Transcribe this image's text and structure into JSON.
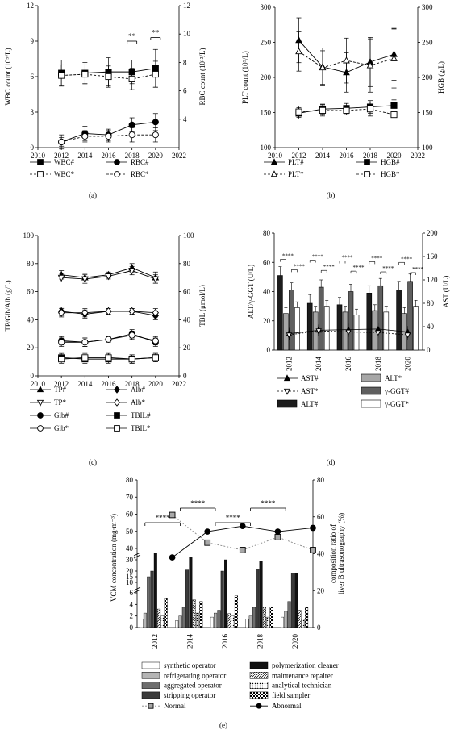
{
  "chart_data": [
    {
      "panel": "(a)",
      "type": "line",
      "ylabel": "WBC count (10⁹/L)",
      "y2label": "RBC count (10¹²/L)",
      "xlim": [
        2010,
        2022
      ],
      "ylim": [
        0,
        12
      ],
      "y2lim": [
        2,
        12
      ],
      "xticks": [
        "2010",
        "2012",
        "2014",
        "2016",
        "2018",
        "2020",
        "2022"
      ],
      "yticks": [
        "0",
        "3",
        "6",
        "9",
        "12"
      ],
      "y2ticks": [
        "4",
        "6",
        "8",
        "10",
        "12"
      ],
      "x": [
        2012,
        2014,
        2016,
        2018,
        2020
      ],
      "annotations": [
        "**",
        "**"
      ],
      "series": [
        {
          "name": "WBC#",
          "axis": "left",
          "marker": "square-filled",
          "dash": false,
          "values": [
            6.3,
            6.3,
            6.4,
            6.4,
            6.7
          ],
          "err": [
            1.1,
            0.9,
            1.2,
            1.0,
            1.6
          ]
        },
        {
          "name": "WBC*",
          "axis": "left",
          "marker": "square-open",
          "dash": true,
          "values": [
            6.1,
            6.2,
            6.0,
            5.8,
            6.2
          ],
          "err": [
            0.9,
            0.8,
            0.9,
            0.9,
            1.1
          ]
        },
        {
          "name": "RBC#",
          "axis": "right",
          "marker": "circle-filled",
          "dash": false,
          "values": [
            2.4,
            3.0,
            2.9,
            3.6,
            3.8
          ],
          "err": [
            0.5,
            0.5,
            0.4,
            0.5,
            0.6
          ]
        },
        {
          "name": "RBC*",
          "axis": "right",
          "marker": "circle-open",
          "dash": true,
          "values": [
            2.4,
            2.8,
            2.8,
            2.9,
            2.9
          ],
          "err": [
            0.3,
            0.4,
            0.4,
            0.5,
            0.5
          ]
        }
      ]
    },
    {
      "panel": "(b)",
      "type": "line",
      "ylabel": "PLT count (10⁹/L)",
      "y2label": "HGB (g/L)",
      "xlim": [
        2010,
        2022
      ],
      "ylim": [
        100,
        300
      ],
      "y2lim": [
        100,
        300
      ],
      "xticks": [
        "2010",
        "2012",
        "2014",
        "2016",
        "2018",
        "2020",
        "2022"
      ],
      "yticks": [
        "100",
        "150",
        "200",
        "250",
        "300"
      ],
      "y2ticks": [
        "100",
        "150",
        "200",
        "250",
        "300"
      ],
      "x": [
        2012,
        2014,
        2016,
        2018,
        2020
      ],
      "series": [
        {
          "name": "PLT#",
          "axis": "left",
          "marker": "triangle-filled",
          "dash": false,
          "values": [
            253,
            215,
            207,
            222,
            233
          ],
          "err": [
            32,
            27,
            28,
            35,
            37
          ]
        },
        {
          "name": "PLT*",
          "axis": "left",
          "marker": "triangle-open",
          "dash": true,
          "values": [
            237,
            214,
            224,
            217,
            227
          ],
          "err": [
            28,
            24,
            32,
            38,
            42
          ]
        },
        {
          "name": "HGB#",
          "axis": "right",
          "marker": "square-filled",
          "dash": false,
          "values": [
            149,
            155,
            156,
            158,
            160
          ],
          "err": [
            8,
            7,
            7,
            9,
            8
          ]
        },
        {
          "name": "HGB*",
          "axis": "right",
          "marker": "square-open",
          "dash": true,
          "values": [
            151,
            153,
            153,
            155,
            147
          ],
          "err": [
            8,
            8,
            6,
            10,
            12
          ]
        }
      ]
    },
    {
      "panel": "(c)",
      "type": "line",
      "ylabel": "TP/Glb/Alb (g/L)",
      "y2label": "TBL (μmol/L)",
      "xlim": [
        2010,
        2022
      ],
      "ylim": [
        0,
        100
      ],
      "y2lim": [
        0,
        100
      ],
      "xticks": [
        "2010",
        "2012",
        "2014",
        "2016",
        "2018",
        "2020",
        "2022"
      ],
      "yticks": [
        "0",
        "20",
        "40",
        "60",
        "80",
        "100"
      ],
      "y2ticks": [
        "0",
        "20",
        "40",
        "60",
        "80",
        "100"
      ],
      "x": [
        2012,
        2014,
        2016,
        2018,
        2020
      ],
      "series": [
        {
          "name": "TP#",
          "axis": "left",
          "marker": "triangle-filled",
          "dash": false,
          "values": [
            72,
            70,
            72,
            77,
            70
          ],
          "err": [
            3,
            3,
            2,
            3,
            4
          ]
        },
        {
          "name": "TP*",
          "axis": "left",
          "marker": "triangle-down-open",
          "dash": false,
          "values": [
            70,
            69,
            71,
            75,
            69
          ],
          "err": [
            3,
            3,
            2,
            3,
            3
          ]
        },
        {
          "name": "Alb#",
          "axis": "left",
          "marker": "diamond-filled",
          "dash": false,
          "values": [
            46,
            44,
            46,
            46,
            43
          ],
          "err": [
            3,
            3,
            2,
            2,
            3
          ]
        },
        {
          "name": "Alb*",
          "axis": "left",
          "marker": "diamond-open",
          "dash": false,
          "values": [
            45,
            45,
            46,
            46,
            45
          ],
          "err": [
            3,
            3,
            2,
            2,
            3
          ]
        },
        {
          "name": "Glb#",
          "axis": "left",
          "marker": "circle-filled",
          "dash": false,
          "values": [
            25,
            24,
            26,
            30,
            24
          ],
          "err": [
            3,
            3,
            2,
            3,
            3
          ]
        },
        {
          "name": "Glb*",
          "axis": "left",
          "marker": "circle-open",
          "dash": false,
          "values": [
            24,
            24,
            26,
            29,
            25
          ],
          "err": [
            3,
            3,
            2,
            3,
            3
          ]
        },
        {
          "name": "TBIL#",
          "axis": "right",
          "marker": "square-filled",
          "dash": false,
          "values": [
            13,
            12,
            12,
            12,
            13
          ],
          "err": [
            3,
            3,
            3,
            3,
            3
          ]
        },
        {
          "name": "TBIL*",
          "axis": "right",
          "marker": "square-open",
          "dash": false,
          "values": [
            12,
            13,
            13,
            12,
            13
          ],
          "err": [
            3,
            3,
            3,
            3,
            3
          ]
        }
      ]
    },
    {
      "panel": "(d)",
      "type": "bar",
      "ylabel": "ALT/γ-GGT (U/L)",
      "y2label": "AST (U/L)",
      "ylim": [
        0,
        80
      ],
      "y2lim": [
        0,
        200
      ],
      "yticks": [
        "0",
        "20",
        "40",
        "60",
        "80"
      ],
      "y2ticks": [
        "0",
        "40",
        "80",
        "120",
        "160",
        "200"
      ],
      "categories": [
        "2012",
        "2014",
        "2016",
        "2018",
        "2020"
      ],
      "annotations": [
        "****"
      ],
      "bars": [
        {
          "name": "ALT#",
          "color": "#1c1c1c",
          "values": [
            51,
            32,
            31,
            39,
            41
          ],
          "err": [
            6,
            6,
            5,
            5,
            6
          ]
        },
        {
          "name": "ALT*",
          "color": "#a6a6a6",
          "values": [
            25,
            26,
            26,
            27,
            25
          ],
          "err": [
            4,
            4,
            4,
            4,
            4
          ]
        },
        {
          "name": "γ-GGT#",
          "color": "#5f5f5f",
          "values": [
            41,
            43,
            40,
            44,
            47
          ],
          "err": [
            5,
            5,
            5,
            5,
            5
          ]
        },
        {
          "name": "γ-GGT*",
          "color": "#ffffff",
          "values": [
            29,
            30,
            24,
            26,
            30
          ],
          "err": [
            4,
            4,
            4,
            4,
            4
          ]
        }
      ],
      "series": [
        {
          "name": "AST#",
          "axis": "right",
          "marker": "triangle-filled",
          "dash": false,
          "values": [
            28,
            34,
            35,
            36,
            31
          ],
          "err": [
            10,
            10,
            10,
            10,
            10
          ]
        },
        {
          "name": "AST*",
          "axis": "right",
          "marker": "triangle-down-open",
          "dash": true,
          "values": [
            26,
            33,
            31,
            30,
            26
          ],
          "err": [
            9,
            9,
            9,
            9,
            9
          ]
        }
      ]
    },
    {
      "panel": "(e)",
      "type": "bar",
      "ylabel": "VCM concentration (mg·m⁻³)",
      "y2label": "composition ratio of liver B ultrasonography (%)",
      "ylim": [
        0,
        80
      ],
      "y2lim": [
        0,
        80
      ],
      "yticks": [
        "0",
        "2",
        "4",
        "6",
        "10",
        "15",
        "20",
        "30",
        "40",
        "50",
        "60",
        "70",
        "80"
      ],
      "y2ticks": [
        "0",
        "20",
        "40",
        "60",
        "80"
      ],
      "categories": [
        "2012",
        "2014",
        "2016",
        "2018",
        "2020"
      ],
      "annotations": [
        "****"
      ],
      "bars": [
        {
          "name": "synthetic operator",
          "pattern": "white",
          "values": [
            1.5,
            1.2,
            1.8,
            1.5,
            1.8
          ]
        },
        {
          "name": "refrigerating operator",
          "pattern": "lightgray",
          "values": [
            2.5,
            2.0,
            2.5,
            2.0,
            2.8
          ]
        },
        {
          "name": "aggregated operator",
          "pattern": "gray",
          "values": [
            15,
            3.5,
            3.0,
            3.5,
            4.5
          ]
        },
        {
          "name": "stripping operator",
          "pattern": "darkgray",
          "values": [
            20,
            21,
            20,
            22,
            18
          ]
        },
        {
          "name": "polymerization cleaner",
          "pattern": "black",
          "values": [
            36,
            32,
            30,
            29,
            18
          ]
        },
        {
          "name": "maintenance repairer",
          "pattern": "hatch",
          "values": [
            3.2,
            4.8,
            2.4,
            3.5,
            3.0
          ]
        },
        {
          "name": "analytical technician",
          "pattern": "dots",
          "values": [
            2.0,
            2.5,
            2.0,
            1.8,
            1.5
          ]
        },
        {
          "name": "field sampler",
          "pattern": "check",
          "values": [
            5.0,
            4.5,
            5.5,
            3.5,
            3.5
          ]
        }
      ],
      "series": [
        {
          "name": "Normal",
          "axis": "right",
          "marker": "square-gray",
          "dash": true,
          "x": [
            2013,
            2015,
            2017,
            2019,
            2021
          ],
          "values": [
            61,
            46,
            42,
            49,
            42
          ]
        },
        {
          "name": "Abnormal",
          "axis": "right",
          "marker": "circle-filled",
          "dash": false,
          "x": [
            2013,
            2015,
            2017,
            2019,
            2021
          ],
          "values": [
            38,
            52,
            55,
            52,
            54
          ]
        }
      ]
    }
  ]
}
